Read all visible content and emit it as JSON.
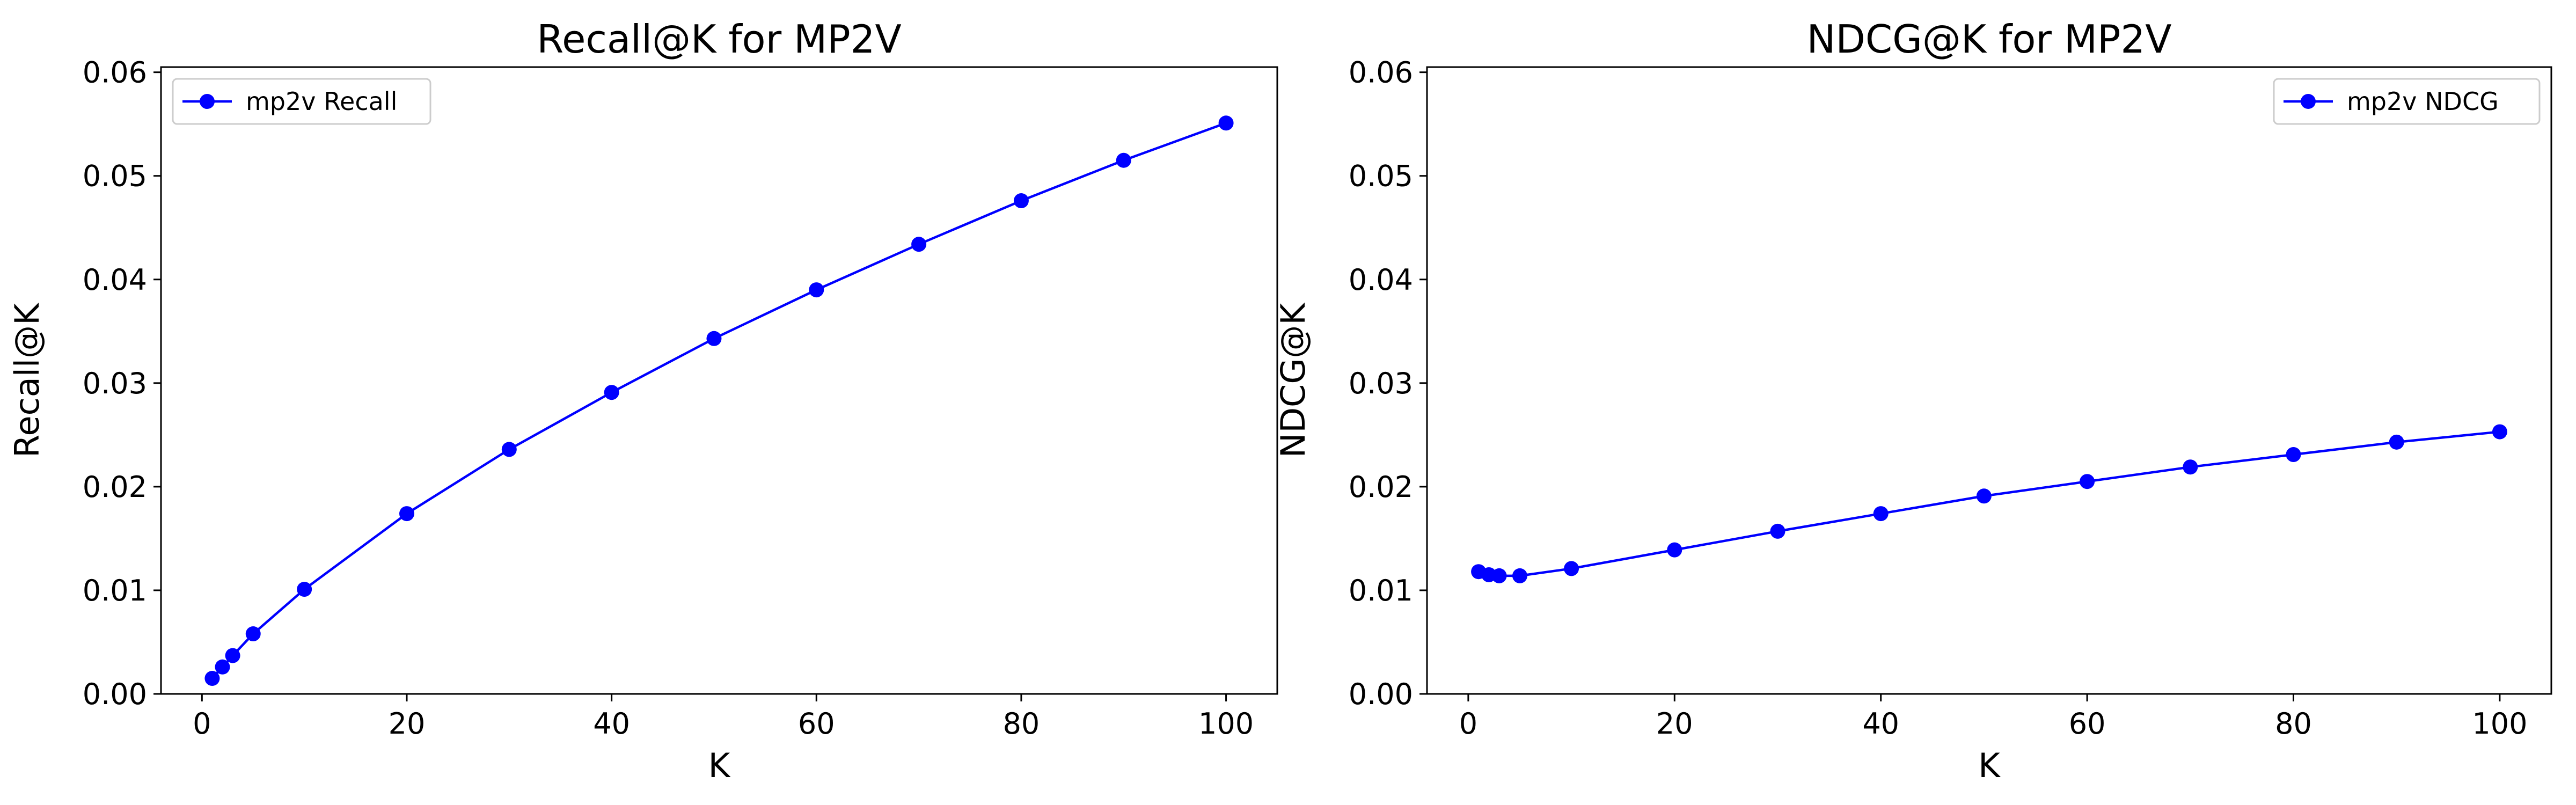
{
  "chart_data": [
    {
      "type": "line",
      "title": "Recall@K for MP2V",
      "xlabel": "K",
      "ylabel": "Recall@K",
      "xlim": [
        -4,
        105
      ],
      "ylim": [
        0,
        0.0605
      ],
      "xticks": [
        "0",
        "20",
        "40",
        "60",
        "80",
        "100"
      ],
      "yticks": [
        "0.00",
        "0.01",
        "0.02",
        "0.03",
        "0.04",
        "0.05",
        "0.06"
      ],
      "grid": false,
      "legend_position": "upper left",
      "series": [
        {
          "name": "mp2v Recall",
          "color": "#0000ff",
          "marker": "circle",
          "x": [
            1,
            2,
            3,
            5,
            10,
            20,
            30,
            40,
            50,
            60,
            70,
            80,
            90,
            100
          ],
          "y": [
            0.0015,
            0.0026,
            0.0037,
            0.0058,
            0.0101,
            0.0174,
            0.0236,
            0.0291,
            0.0343,
            0.039,
            0.0434,
            0.0476,
            0.0515,
            0.0551
          ]
        }
      ]
    },
    {
      "type": "line",
      "title": "NDCG@K for MP2V",
      "xlabel": "K",
      "ylabel": "NDCG@K",
      "xlim": [
        -4,
        105
      ],
      "ylim": [
        0,
        0.0605
      ],
      "xticks": [
        "0",
        "20",
        "40",
        "60",
        "80",
        "100"
      ],
      "yticks": [
        "0.00",
        "0.01",
        "0.02",
        "0.03",
        "0.04",
        "0.05",
        "0.06"
      ],
      "grid": false,
      "legend_position": "upper right",
      "series": [
        {
          "name": "mp2v NDCG",
          "color": "#0000ff",
          "marker": "circle",
          "x": [
            1,
            2,
            3,
            5,
            10,
            20,
            30,
            40,
            50,
            60,
            70,
            80,
            90,
            100
          ],
          "y": [
            0.0118,
            0.0115,
            0.0114,
            0.0114,
            0.0121,
            0.0139,
            0.0157,
            0.0174,
            0.0191,
            0.0205,
            0.0219,
            0.0231,
            0.0243,
            0.0253
          ]
        }
      ]
    }
  ]
}
